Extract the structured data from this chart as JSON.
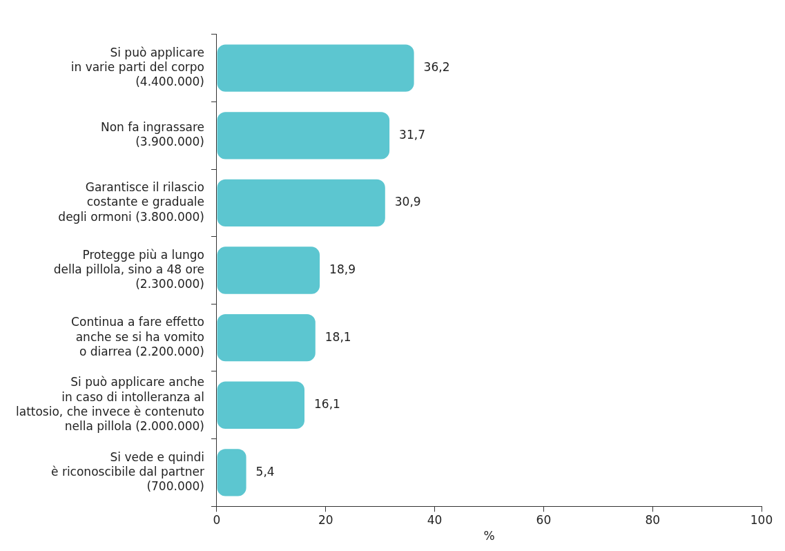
{
  "chart_data": {
    "type": "bar",
    "orientation": "horizontal",
    "xlabel": "%",
    "categories": [
      "Si può applicare\nin varie parti del corpo\n(4.400.000)",
      "Non fa ingrassare\n(3.900.000)",
      "Garantisce il rilascio\ncostante e graduale\ndegli ormoni (3.800.000)",
      "Protegge più a lungo\ndella pillola, sino a 48 ore\n(2.300.000)",
      "Continua a fare effetto\nanche se si ha vomito\no diarrea (2.200.000)",
      "Si può applicare anche\nin caso di intolleranza al\nlattosio, che invece è contenuto\nnella pillola (2.000.000)",
      "Si vede e quindi\nè riconoscibile dal partner\n(700.000)"
    ],
    "values": [
      36.2,
      31.7,
      30.9,
      18.9,
      18.1,
      16.1,
      5.4
    ],
    "value_labels": [
      "36,2",
      "31,7",
      "30,9",
      "18,9",
      "18,1",
      "16,1",
      "5,4"
    ],
    "color": "#5cc6d0",
    "xlim": [
      0,
      100
    ],
    "xticks": [
      0,
      20,
      40,
      60,
      80,
      100
    ],
    "grid": false,
    "legend": false
  }
}
